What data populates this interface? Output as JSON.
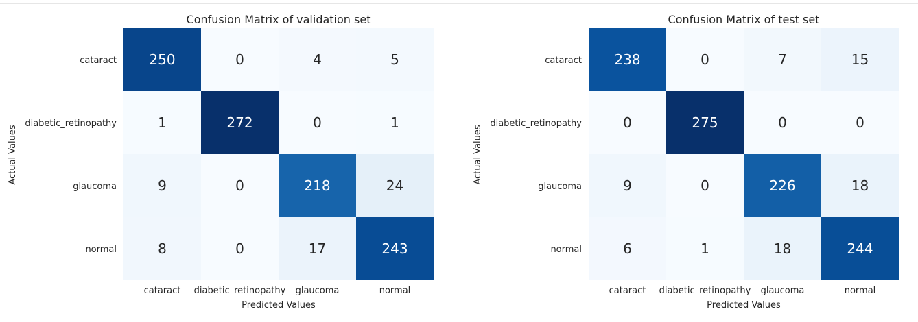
{
  "chart_data": [
    {
      "type": "heatmap",
      "title": "Confusion Matrix of validation set",
      "xlabel": "Predicted Values",
      "ylabel": "Actual Values",
      "x_categories": [
        "cataract",
        "diabetic_retinopathy",
        "glaucoma",
        "normal"
      ],
      "y_categories": [
        "cataract",
        "diabetic_retinopathy",
        "glaucoma",
        "normal"
      ],
      "values": [
        [
          250,
          0,
          4,
          5
        ],
        [
          1,
          272,
          0,
          1
        ],
        [
          9,
          0,
          218,
          24
        ],
        [
          8,
          0,
          17,
          243
        ]
      ],
      "colormap": "Blues",
      "colorbar": false
    },
    {
      "type": "heatmap",
      "title": "Confusion Matrix of test set",
      "xlabel": "Predicted Values",
      "ylabel": "Actual Values",
      "x_categories": [
        "cataract",
        "diabetic_retinopathy",
        "glaucoma",
        "normal"
      ],
      "y_categories": [
        "cataract",
        "diabetic_retinopathy",
        "glaucoma",
        "normal"
      ],
      "values": [
        [
          238,
          0,
          7,
          15
        ],
        [
          0,
          275,
          0,
          0
        ],
        [
          9,
          0,
          226,
          18
        ],
        [
          6,
          1,
          18,
          244
        ]
      ],
      "colormap": "Blues",
      "colorbar": false
    }
  ]
}
